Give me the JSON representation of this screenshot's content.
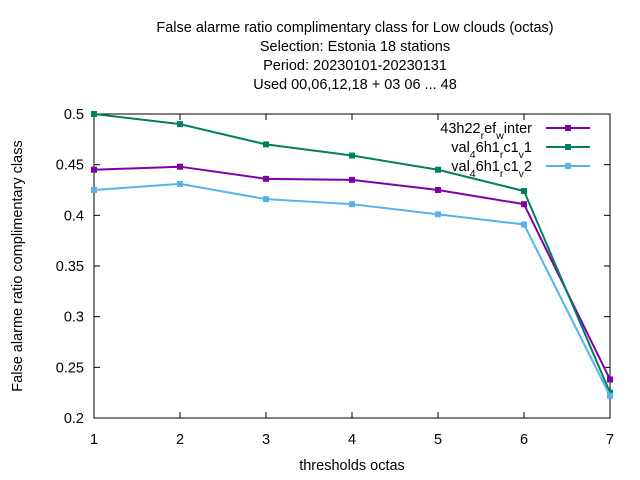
{
  "chart_data": {
    "type": "line",
    "title_lines": [
      "False alarme ratio complimentary class  for Low clouds (octas)",
      "Selection: Estonia      18 stations",
      "Period: 20230101-20230131",
      "Used  00,06,12,18  + 03 06 ... 48"
    ],
    "xlabel": "thresholds octas",
    "ylabel": "False alarme ratio complimentary class",
    "x": [
      1,
      2,
      3,
      4,
      5,
      6,
      7
    ],
    "xlim": [
      1,
      7
    ],
    "ylim": [
      0.2,
      0.5
    ],
    "x_ticks": [
      1,
      2,
      3,
      4,
      5,
      6,
      7
    ],
    "y_ticks": [
      0.2,
      0.25,
      0.3,
      0.35,
      0.4,
      0.45,
      0.5
    ],
    "x_tick_labels": [
      "1",
      "2",
      "3",
      "4",
      "5",
      "6",
      "7"
    ],
    "y_tick_labels": [
      "0.2",
      "0.25",
      "0.3",
      "0.35",
      "0.4",
      "0.45",
      "0.5"
    ],
    "grid": false,
    "legend_position": "top-right",
    "series": [
      {
        "legend_parts": [
          [
            "43h22",
            ""
          ],
          [
            "r",
            "sub"
          ],
          [
            "ef",
            ""
          ],
          [
            "w",
            "sub"
          ],
          [
            "inter",
            ""
          ]
        ],
        "color": "#8000a8",
        "values": [
          0.445,
          0.448,
          0.436,
          0.435,
          0.425,
          0.411,
          0.238
        ]
      },
      {
        "legend_parts": [
          [
            "val",
            ""
          ],
          [
            "4",
            "sub"
          ],
          [
            "6h1",
            ""
          ],
          [
            "r",
            "sub"
          ],
          [
            "c1",
            ""
          ],
          [
            "v",
            "sub"
          ],
          [
            "1",
            ""
          ]
        ],
        "color": "#008060",
        "values": [
          0.5,
          0.49,
          0.47,
          0.459,
          0.445,
          0.424,
          0.225
        ]
      },
      {
        "legend_parts": [
          [
            "val",
            ""
          ],
          [
            "4",
            "sub"
          ],
          [
            "6h1",
            ""
          ],
          [
            "r",
            "sub"
          ],
          [
            "c1",
            ""
          ],
          [
            "v",
            "sub"
          ],
          [
            "2",
            ""
          ]
        ],
        "color": "#56b4e9",
        "values": [
          0.425,
          0.431,
          0.416,
          0.411,
          0.401,
          0.391,
          0.222
        ]
      }
    ]
  }
}
